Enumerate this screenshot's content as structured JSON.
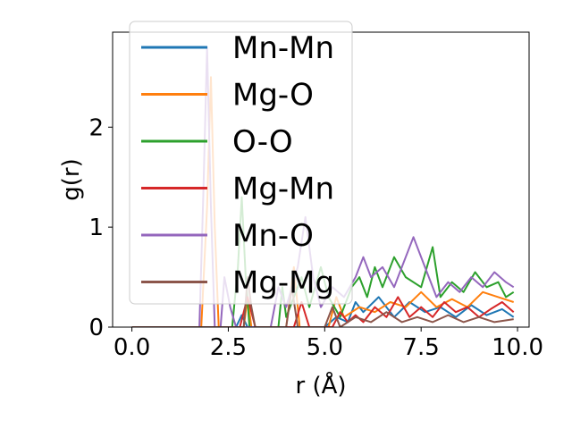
{
  "chart_data": {
    "type": "line",
    "xlabel": "r (Å)",
    "ylabel": "g(r)",
    "xlim": [
      -0.5,
      10.3
    ],
    "ylim": [
      0,
      2.95
    ],
    "xticks": [
      0.0,
      2.5,
      5.0,
      7.5,
      10.0
    ],
    "xtick_labels": [
      "0.0",
      "2.5",
      "5.0",
      "7.5",
      "10.0"
    ],
    "yticks": [
      0,
      1,
      2
    ],
    "ytick_labels": [
      "0",
      "1",
      "2"
    ],
    "grid": false,
    "legend_position": "upper-left",
    "series": [
      {
        "name": "Mn-Mn",
        "color": "#1f77b4",
        "points": [
          [
            0,
            0
          ],
          [
            2.7,
            0
          ],
          [
            2.85,
            0.12
          ],
          [
            3.0,
            0
          ],
          [
            5.0,
            0
          ],
          [
            5.3,
            0.1
          ],
          [
            5.6,
            0.05
          ],
          [
            5.8,
            0.25
          ],
          [
            6.0,
            0.15
          ],
          [
            6.4,
            0.3
          ],
          [
            6.8,
            0.1
          ],
          [
            7.2,
            0.25
          ],
          [
            7.6,
            0.15
          ],
          [
            8.0,
            0.2
          ],
          [
            8.4,
            0.1
          ],
          [
            8.8,
            0.22
          ],
          [
            9.2,
            0.12
          ],
          [
            9.6,
            0.18
          ],
          [
            9.9,
            0.1
          ]
        ]
      },
      {
        "name": "Mg-O",
        "color": "#ff7f0e",
        "points": [
          [
            0,
            0
          ],
          [
            1.8,
            0
          ],
          [
            1.95,
            1.2
          ],
          [
            2.05,
            2.5
          ],
          [
            2.15,
            1.0
          ],
          [
            2.25,
            0
          ],
          [
            2.9,
            0
          ],
          [
            3.0,
            0.3
          ],
          [
            3.1,
            0
          ],
          [
            4.0,
            0
          ],
          [
            4.2,
            0.6
          ],
          [
            4.35,
            0
          ],
          [
            5.1,
            0
          ],
          [
            5.3,
            0.3
          ],
          [
            5.5,
            0.1
          ],
          [
            5.9,
            0.2
          ],
          [
            6.3,
            0.15
          ],
          [
            6.7,
            0.25
          ],
          [
            7.1,
            0.2
          ],
          [
            7.5,
            0.35
          ],
          [
            7.9,
            0.2
          ],
          [
            8.3,
            0.28
          ],
          [
            8.7,
            0.2
          ],
          [
            9.1,
            0.35
          ],
          [
            9.5,
            0.3
          ],
          [
            9.9,
            0.25
          ]
        ]
      },
      {
        "name": "O-O",
        "color": "#2ca02c",
        "points": [
          [
            0,
            0
          ],
          [
            2.6,
            0
          ],
          [
            2.75,
            0.6
          ],
          [
            2.85,
            1.3
          ],
          [
            2.95,
            0.5
          ],
          [
            3.05,
            0
          ],
          [
            3.8,
            0
          ],
          [
            3.9,
            0.4
          ],
          [
            4.0,
            0.1
          ],
          [
            4.4,
            0.5
          ],
          [
            4.6,
            0.2
          ],
          [
            4.9,
            0.6
          ],
          [
            5.1,
            0.3
          ],
          [
            5.4,
            0.1
          ],
          [
            5.7,
            0.4
          ],
          [
            5.9,
            0.5
          ],
          [
            6.1,
            0.3
          ],
          [
            6.3,
            0.6
          ],
          [
            6.5,
            0.4
          ],
          [
            6.8,
            0.7
          ],
          [
            7.1,
            0.5
          ],
          [
            7.5,
            0.4
          ],
          [
            7.8,
            0.8
          ],
          [
            8.0,
            0.3
          ],
          [
            8.3,
            0.45
          ],
          [
            8.6,
            0.35
          ],
          [
            8.9,
            0.55
          ],
          [
            9.2,
            0.4
          ],
          [
            9.5,
            0.45
          ],
          [
            9.7,
            0.3
          ],
          [
            9.9,
            0.35
          ]
        ]
      },
      {
        "name": "Mg-Mn",
        "color": "#d62728",
        "points": [
          [
            0,
            0
          ],
          [
            2.8,
            0
          ],
          [
            3.0,
            0.3
          ],
          [
            3.2,
            0
          ],
          [
            4.2,
            0
          ],
          [
            4.4,
            0.25
          ],
          [
            4.6,
            0
          ],
          [
            5.2,
            0
          ],
          [
            5.4,
            0.15
          ],
          [
            5.6,
            0.05
          ],
          [
            5.8,
            0.12
          ],
          [
            6.0,
            0.05
          ],
          [
            6.3,
            0.2
          ],
          [
            6.6,
            0.1
          ],
          [
            6.9,
            0.3
          ],
          [
            7.2,
            0.1
          ],
          [
            7.5,
            0.2
          ],
          [
            7.8,
            0.1
          ],
          [
            8.1,
            0.25
          ],
          [
            8.4,
            0.15
          ],
          [
            8.7,
            0.2
          ],
          [
            9.0,
            0.1
          ],
          [
            9.3,
            0.18
          ],
          [
            9.6,
            0.25
          ],
          [
            9.9,
            0.15
          ]
        ]
      },
      {
        "name": "Mn-O",
        "color": "#9467bd",
        "points": [
          [
            0,
            0
          ],
          [
            1.75,
            0
          ],
          [
            1.85,
            1.3
          ],
          [
            1.95,
            2.8
          ],
          [
            2.05,
            1.2
          ],
          [
            2.15,
            0
          ],
          [
            2.3,
            0
          ],
          [
            2.4,
            0.5
          ],
          [
            2.55,
            0.2
          ],
          [
            2.7,
            0
          ],
          [
            3.6,
            0
          ],
          [
            3.8,
            0.4
          ],
          [
            4.0,
            0.2
          ],
          [
            4.3,
            0.6
          ],
          [
            4.5,
            1.1
          ],
          [
            4.7,
            0.5
          ],
          [
            4.9,
            0.2
          ],
          [
            5.2,
            0.4
          ],
          [
            5.5,
            0.3
          ],
          [
            5.8,
            0.5
          ],
          [
            6.0,
            0.7
          ],
          [
            6.2,
            0.5
          ],
          [
            6.5,
            0.6
          ],
          [
            6.8,
            0.4
          ],
          [
            7.0,
            0.6
          ],
          [
            7.3,
            0.9
          ],
          [
            7.6,
            0.6
          ],
          [
            7.9,
            0.3
          ],
          [
            8.2,
            0.45
          ],
          [
            8.5,
            0.35
          ],
          [
            8.8,
            0.5
          ],
          [
            9.1,
            0.4
          ],
          [
            9.4,
            0.55
          ],
          [
            9.7,
            0.45
          ],
          [
            9.9,
            0.4
          ]
        ]
      },
      {
        "name": "Mg-Mg",
        "color": "#8c564b",
        "points": [
          [
            0,
            0
          ],
          [
            2.9,
            0
          ],
          [
            3.0,
            0.5
          ],
          [
            3.1,
            0.2
          ],
          [
            3.2,
            0
          ],
          [
            4.0,
            0
          ],
          [
            4.15,
            0.4
          ],
          [
            4.3,
            0
          ],
          [
            5.0,
            0
          ],
          [
            5.2,
            0.2
          ],
          [
            5.4,
            0
          ],
          [
            5.8,
            0.1
          ],
          [
            6.2,
            0.05
          ],
          [
            6.6,
            0.15
          ],
          [
            7.0,
            0.05
          ],
          [
            7.4,
            0.1
          ],
          [
            7.8,
            0.05
          ],
          [
            8.2,
            0.12
          ],
          [
            8.6,
            0.05
          ],
          [
            9.0,
            0.1
          ],
          [
            9.4,
            0.05
          ],
          [
            9.9,
            0.08
          ]
        ]
      }
    ]
  }
}
